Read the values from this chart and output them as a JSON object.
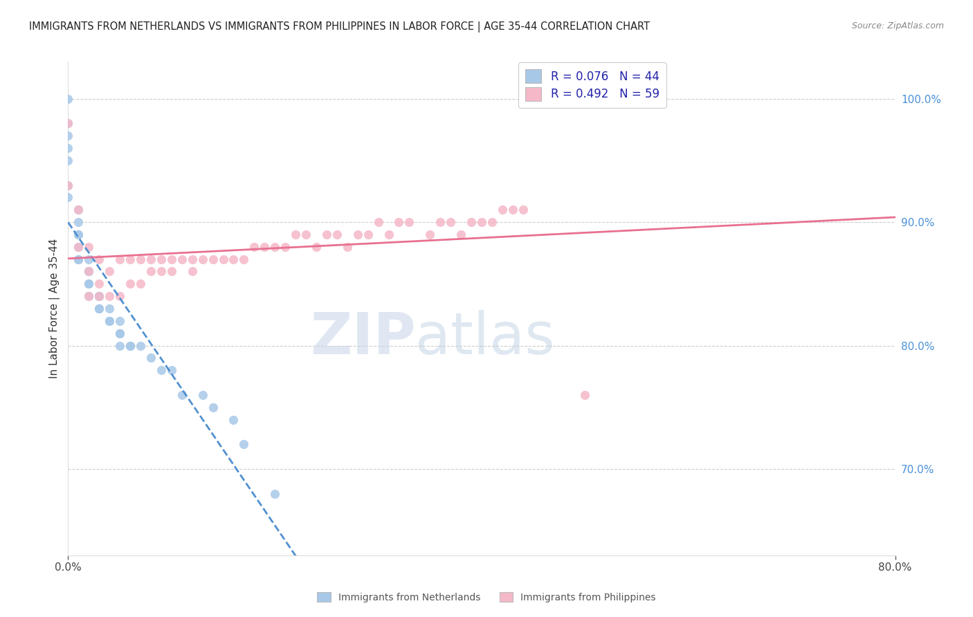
{
  "title": "IMMIGRANTS FROM NETHERLANDS VS IMMIGRANTS FROM PHILIPPINES IN LABOR FORCE | AGE 35-44 CORRELATION CHART",
  "source": "Source: ZipAtlas.com",
  "ylabel": "In Labor Force | Age 35-44",
  "legend_r1": "R = 0.076",
  "legend_n1": "N = 44",
  "legend_r2": "R = 0.492",
  "legend_n2": "N = 59",
  "color_netherlands": "#a8c8e8",
  "color_philippines": "#f5b8c8",
  "line_netherlands": "#5090d0",
  "line_philippines": "#e87090",
  "background_color": "#ffffff",
  "netherlands_x": [
    0.0,
    0.0,
    0.0,
    0.0,
    0.0,
    0.0,
    0.0,
    0.01,
    0.01,
    0.01,
    0.01,
    0.01,
    0.01,
    0.01,
    0.02,
    0.02,
    0.02,
    0.02,
    0.02,
    0.02,
    0.03,
    0.03,
    0.03,
    0.03,
    0.03,
    0.04,
    0.04,
    0.04,
    0.05,
    0.05,
    0.05,
    0.05,
    0.06,
    0.06,
    0.07,
    0.08,
    0.09,
    0.1,
    0.11,
    0.13,
    0.14,
    0.16,
    0.17,
    0.2
  ],
  "netherlands_y": [
    1.0,
    0.98,
    0.97,
    0.96,
    0.95,
    0.93,
    0.92,
    0.91,
    0.9,
    0.89,
    0.89,
    0.88,
    0.87,
    0.87,
    0.87,
    0.86,
    0.86,
    0.85,
    0.85,
    0.84,
    0.84,
    0.84,
    0.84,
    0.83,
    0.83,
    0.83,
    0.82,
    0.82,
    0.82,
    0.81,
    0.81,
    0.8,
    0.8,
    0.8,
    0.8,
    0.79,
    0.78,
    0.78,
    0.76,
    0.76,
    0.75,
    0.74,
    0.72,
    0.68
  ],
  "philippines_x": [
    0.0,
    0.0,
    0.01,
    0.01,
    0.02,
    0.02,
    0.02,
    0.03,
    0.03,
    0.03,
    0.04,
    0.04,
    0.05,
    0.05,
    0.06,
    0.06,
    0.07,
    0.07,
    0.08,
    0.08,
    0.09,
    0.09,
    0.1,
    0.1,
    0.11,
    0.12,
    0.12,
    0.13,
    0.14,
    0.15,
    0.16,
    0.17,
    0.18,
    0.19,
    0.2,
    0.21,
    0.22,
    0.23,
    0.24,
    0.25,
    0.26,
    0.27,
    0.28,
    0.29,
    0.3,
    0.31,
    0.32,
    0.33,
    0.35,
    0.36,
    0.37,
    0.38,
    0.39,
    0.4,
    0.41,
    0.42,
    0.43,
    0.44,
    0.5
  ],
  "philippines_y": [
    0.98,
    0.93,
    0.91,
    0.88,
    0.88,
    0.86,
    0.84,
    0.87,
    0.85,
    0.84,
    0.86,
    0.84,
    0.87,
    0.84,
    0.87,
    0.85,
    0.87,
    0.85,
    0.87,
    0.86,
    0.87,
    0.86,
    0.87,
    0.86,
    0.87,
    0.87,
    0.86,
    0.87,
    0.87,
    0.87,
    0.87,
    0.87,
    0.88,
    0.88,
    0.88,
    0.88,
    0.89,
    0.89,
    0.88,
    0.89,
    0.89,
    0.88,
    0.89,
    0.89,
    0.9,
    0.89,
    0.9,
    0.9,
    0.89,
    0.9,
    0.9,
    0.89,
    0.9,
    0.9,
    0.9,
    0.91,
    0.91,
    0.91,
    0.76
  ],
  "xlim": [
    0.0,
    0.8
  ],
  "ylim": [
    0.63,
    1.03
  ],
  "yticks": [
    0.7,
    0.8,
    0.9,
    1.0
  ],
  "ytick_labels": [
    "70.0%",
    "80.0%",
    "90.0%",
    "100.0%"
  ]
}
